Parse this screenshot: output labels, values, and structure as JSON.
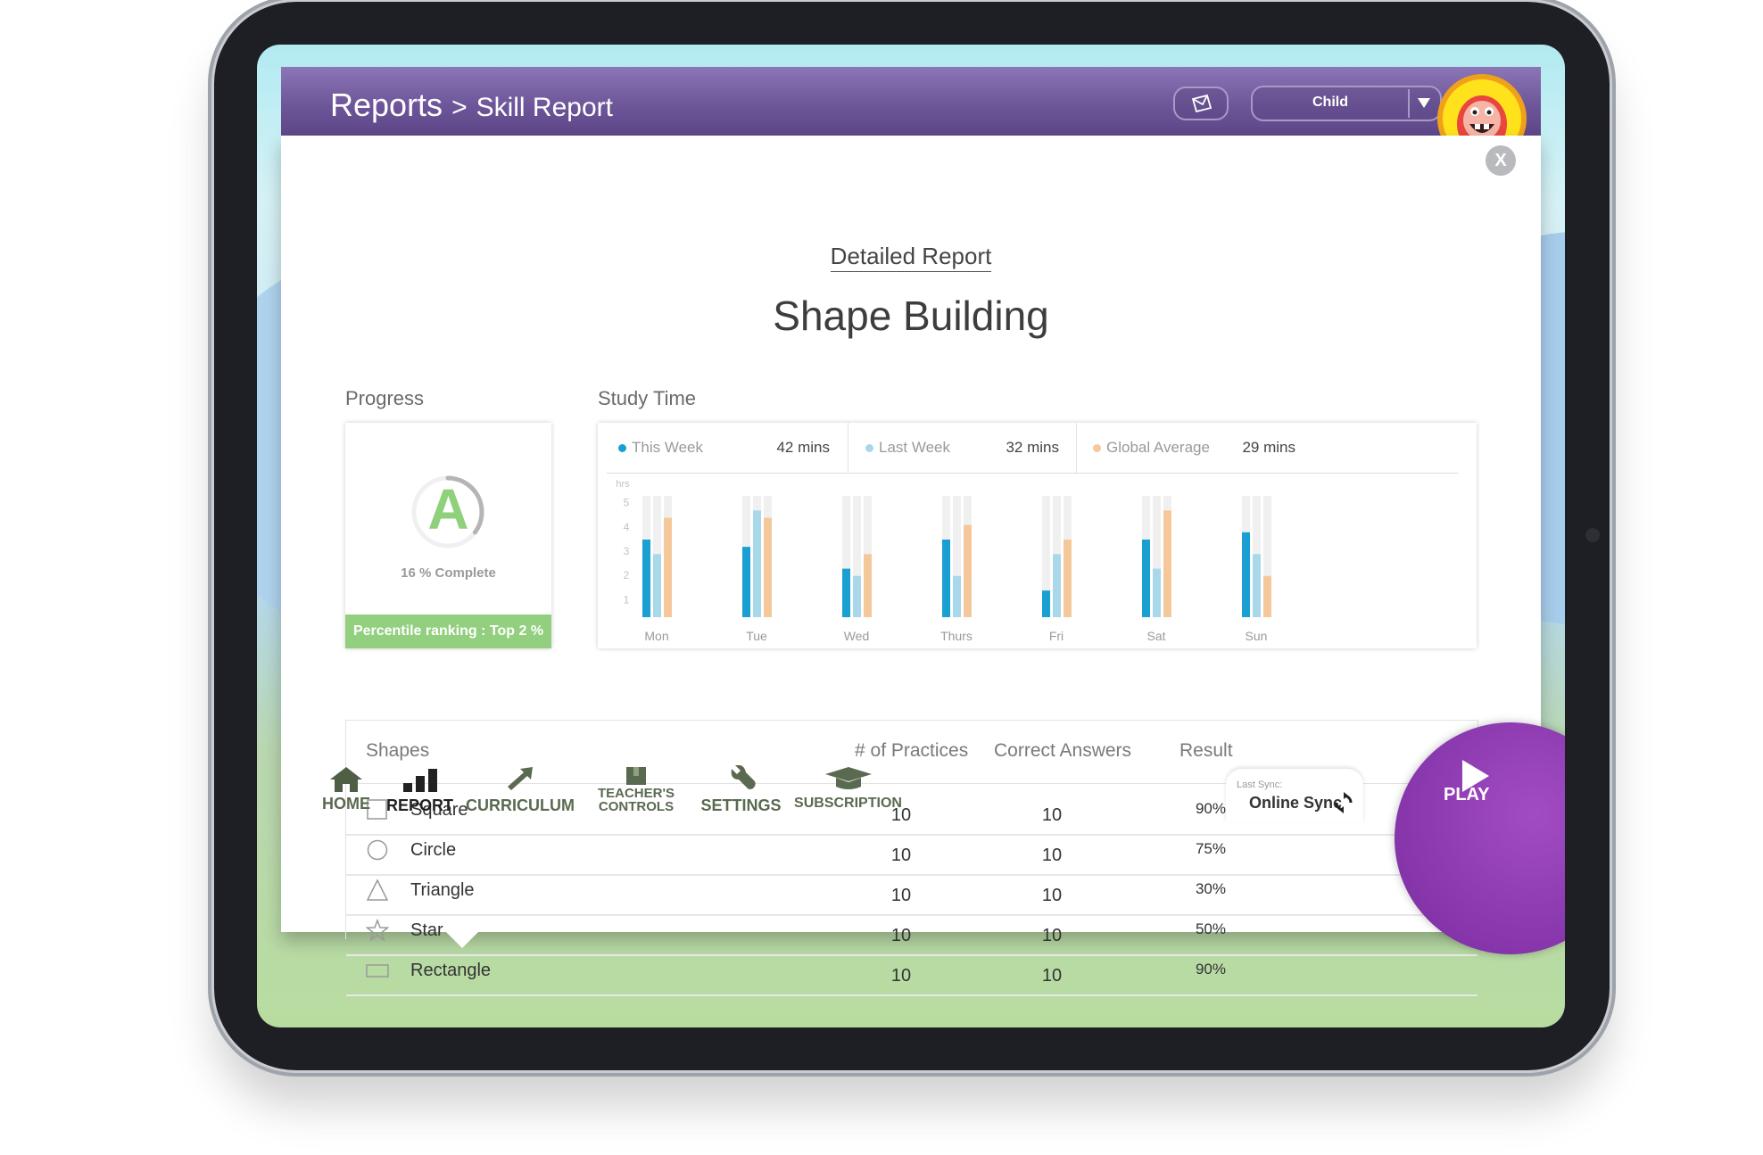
{
  "header": {
    "breadcrumb_root": "Reports",
    "breadcrumb_separator": ">",
    "breadcrumb_page": "Skill Report",
    "child_select": "Child",
    "icons": [
      "envelope-icon",
      "chevron-down-icon"
    ]
  },
  "report": {
    "subtitle": "Detailed Report",
    "title": "Shape Building",
    "close_label": "X"
  },
  "progress": {
    "label": "Progress",
    "grade": "A",
    "complete_text": "16 % Complete",
    "complete_fraction": 0.16,
    "percentile": "Percentile ranking : Top 2 %"
  },
  "study_time": {
    "label": "Study Time",
    "legend": [
      {
        "name": "This Week",
        "value": "42 mins",
        "color": "#1a9fd2"
      },
      {
        "name": "Last Week",
        "value": "32 mins",
        "color": "#a8d8ea"
      },
      {
        "name": "Global Average",
        "value": "29 mins",
        "color": "#f5c89c"
      }
    ]
  },
  "chart_data": {
    "type": "bar",
    "ylabel": "hrs",
    "yticks": [
      "1",
      "2",
      "3",
      "4",
      "5"
    ],
    "ylim": [
      0,
      5
    ],
    "grid": false,
    "categories": [
      "Mon",
      "Tue",
      "Wed",
      "Thurs",
      "Fri",
      "Sat",
      "Sun"
    ],
    "series": [
      {
        "name": "This Week",
        "color": "#1a9fd2",
        "values": [
          3.2,
          2.9,
          2.0,
          3.2,
          1.1,
          3.2,
          3.5
        ]
      },
      {
        "name": "Last Week",
        "color": "#a8d8ea",
        "values": [
          2.6,
          4.4,
          1.7,
          1.7,
          2.6,
          2.0,
          2.6
        ]
      },
      {
        "name": "Global Average",
        "color": "#f5c89c",
        "values": [
          4.1,
          4.1,
          2.6,
          3.8,
          3.2,
          4.4,
          1.7
        ]
      }
    ]
  },
  "table": {
    "columns": [
      "Shapes",
      "# of Practices",
      "Correct Answers",
      "Result"
    ],
    "rows": [
      {
        "icon": "square-icon",
        "name": "Square",
        "practices": "10",
        "correct": "10",
        "result": "90%"
      },
      {
        "icon": "circle-icon",
        "name": "Circle",
        "practices": "10",
        "correct": "10",
        "result": "75%"
      },
      {
        "icon": "triangle-icon",
        "name": "Triangle",
        "practices": "10",
        "correct": "10",
        "result": "30%"
      },
      {
        "icon": "star-icon",
        "name": "Star",
        "practices": "10",
        "correct": "10",
        "result": "50%"
      },
      {
        "icon": "rectangle-icon",
        "name": "Rectangle",
        "practices": "10",
        "correct": "10",
        "result": "90%"
      }
    ]
  },
  "nav": {
    "home": "HOME",
    "report": "REPORT",
    "curriculum": "CURRICULUM",
    "teachers_line1": "TEACHER'S",
    "teachers_line2": "CONTROLS",
    "settings": "SETTINGS",
    "subscription": "SUBSCRIPTION"
  },
  "sync": {
    "caption": "Last Sync:",
    "label": "Online Sync"
  },
  "play": {
    "label": "PLAY"
  }
}
